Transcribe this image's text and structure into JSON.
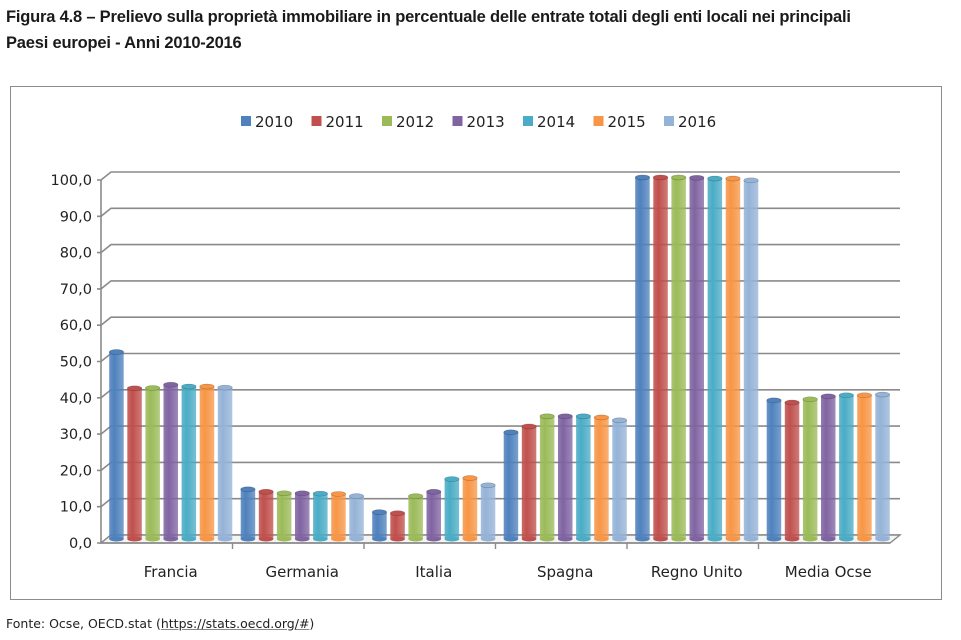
{
  "title": {
    "line1": "Figura 4.8 – Prelievo sulla proprietà immobiliare in percentuale delle entrate totali degli enti locali nei principali",
    "line2": "Paesi europei - Anni 2010-2016"
  },
  "source": {
    "prefix": "Fonte: Ocse, OECD.stat (",
    "url": "https://stats.oecd.org/#",
    "suffix": ")"
  },
  "chart_data": {
    "type": "bar",
    "style": "3d-cylinder",
    "title": "Prelievo sulla proprietà immobiliare in percentuale delle entrate totali degli enti locali nei principali Paesi europei - Anni 2010-2016",
    "xlabel": "",
    "ylabel": "",
    "ylim": [
      0,
      100
    ],
    "yticks": [
      "0,0",
      "10,0",
      "20,0",
      "30,0",
      "40,0",
      "50,0",
      "60,0",
      "70,0",
      "80,0",
      "90,0",
      "100,0"
    ],
    "grid": true,
    "legend_position": "top",
    "categories": [
      "Francia",
      "Germania",
      "Italia",
      "Spagna",
      "Regno Unito",
      "Media Ocse"
    ],
    "series": [
      {
        "name": "2010",
        "color": "#4f81bd",
        "values": [
          51.5,
          13.7,
          7.4,
          29.4,
          99.6,
          38.2
        ]
      },
      {
        "name": "2011",
        "color": "#c0504d",
        "values": [
          41.5,
          13.0,
          7.1,
          31.0,
          99.6,
          37.6
        ]
      },
      {
        "name": "2012",
        "color": "#9bbb59",
        "values": [
          41.6,
          12.6,
          11.8,
          33.8,
          99.6,
          38.5
        ]
      },
      {
        "name": "2013",
        "color": "#8064a2",
        "values": [
          42.5,
          12.6,
          13.0,
          33.8,
          99.5,
          39.3
        ]
      },
      {
        "name": "2014",
        "color": "#4bacc6",
        "values": [
          42.0,
          12.5,
          16.5,
          33.8,
          99.3,
          39.6
        ]
      },
      {
        "name": "2015",
        "color": "#f79646",
        "values": [
          42.0,
          12.4,
          16.8,
          33.5,
          99.3,
          39.6
        ]
      },
      {
        "name": "2016",
        "color": "#95b3d7",
        "values": [
          41.7,
          11.8,
          14.8,
          32.7,
          98.8,
          39.8
        ]
      }
    ]
  }
}
